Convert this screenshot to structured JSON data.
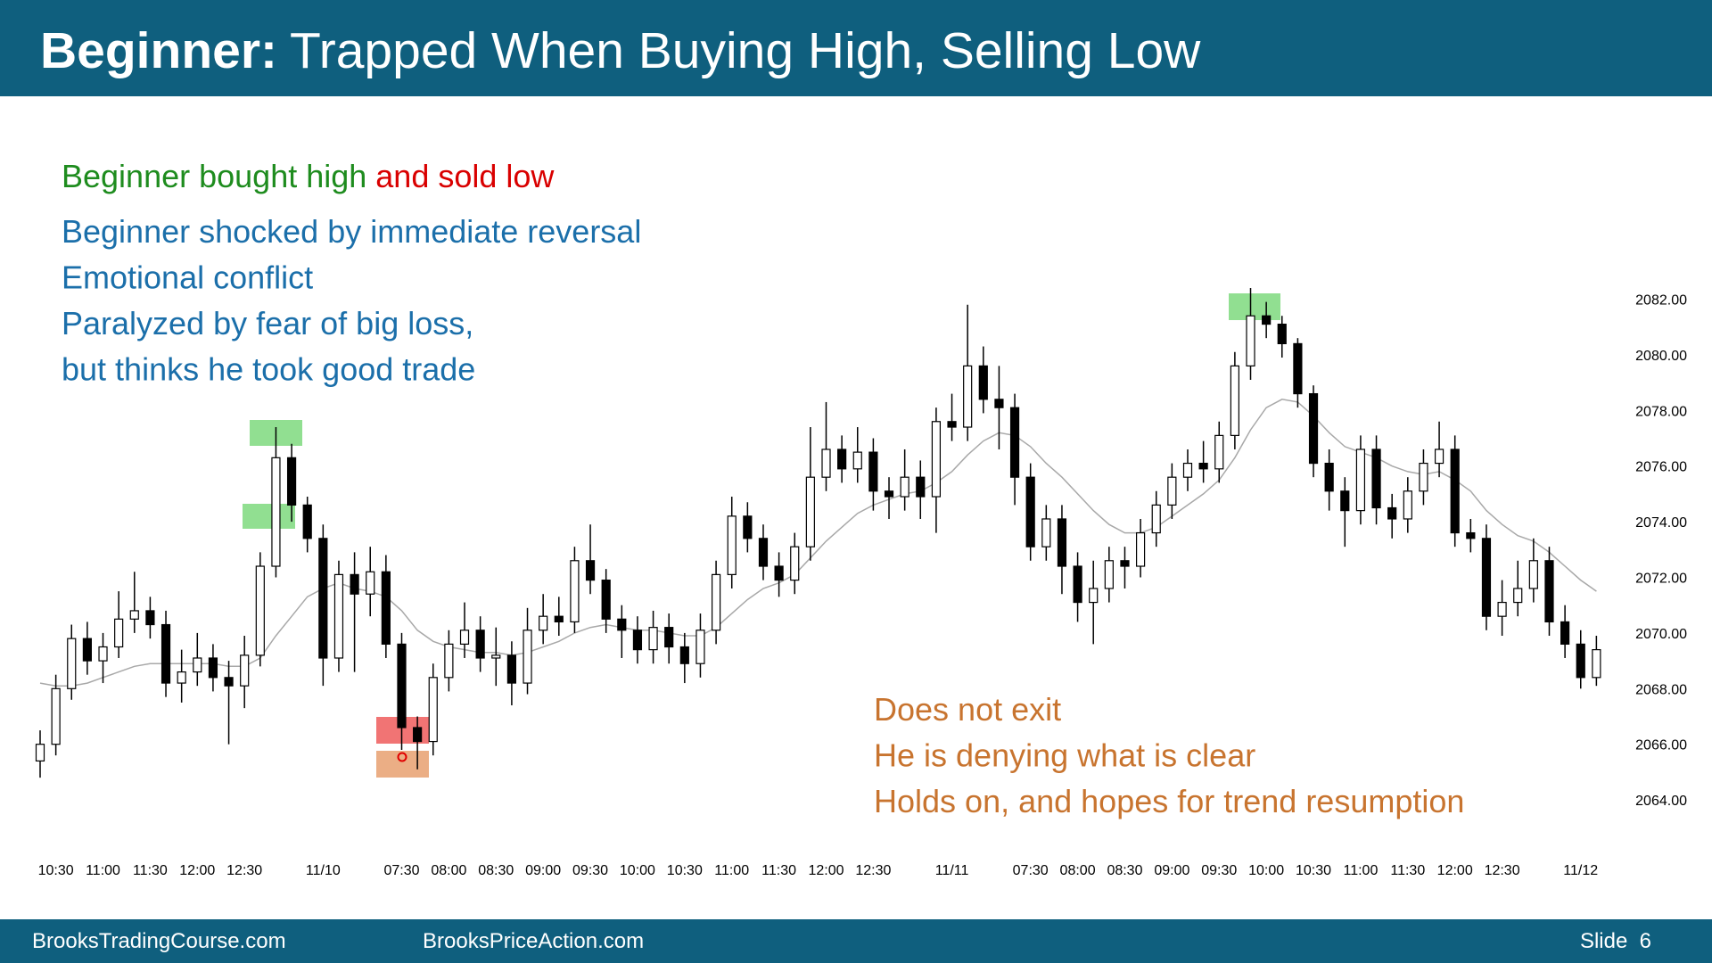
{
  "header": {
    "title_bold": "Beginner:",
    "title_rest": "Trapped When Buying High, Selling Low"
  },
  "footer": {
    "left": "BrooksTradingCourse.com",
    "middle": "BrooksPriceAction.com",
    "right": "Slide  6"
  },
  "chart_data": {
    "type": "candlestick",
    "annotations": {
      "first_line_green": "Beginner bought high",
      "first_line_red": "and sold low",
      "blue_lines": [
        "Beginner shocked by immediate reversal",
        "Emotional conflict",
        "Paralyzed by fear of big loss,",
        "but thinks he took good trade"
      ],
      "orange_lines": [
        "Does not exit",
        "He is denying what is clear",
        "Holds on, and hopes for trend resumption"
      ]
    },
    "colors": {
      "up": "#ffffff",
      "down": "#000000",
      "wick": "#000000",
      "ma": "#a8a8a8",
      "green_text": "#1e8c1e",
      "red_text": "#d90000",
      "blue_text": "#1b6faa",
      "orange_text": "#c8742f"
    },
    "ylim": [
      2063,
      2083
    ],
    "yticks": [
      {
        "value": 2064,
        "label": "2064.00"
      },
      {
        "value": 2066,
        "label": "2066.00"
      },
      {
        "value": 2068,
        "label": "2068.00"
      },
      {
        "value": 2070,
        "label": "2070.00"
      },
      {
        "value": 2072,
        "label": "2072.00"
      },
      {
        "value": 2074,
        "label": "2074.00"
      },
      {
        "value": 2076,
        "label": "2076.00"
      },
      {
        "value": 2078,
        "label": "2078.00"
      },
      {
        "value": 2080,
        "label": "2080.00"
      },
      {
        "value": 2082,
        "label": "2082.00"
      }
    ],
    "categories": [
      null,
      "10:30",
      null,
      null,
      "11:00",
      null,
      null,
      "11:30",
      null,
      null,
      "12:00",
      null,
      null,
      "12:30",
      null,
      null,
      null,
      null,
      "11/10",
      null,
      null,
      null,
      null,
      "07:30",
      null,
      null,
      "08:00",
      null,
      null,
      "08:30",
      null,
      null,
      "09:00",
      null,
      null,
      "09:30",
      null,
      null,
      "10:00",
      null,
      null,
      "10:30",
      null,
      null,
      "11:00",
      null,
      null,
      "11:30",
      null,
      null,
      "12:00",
      null,
      null,
      "12:30",
      null,
      null,
      null,
      null,
      "11/11",
      null,
      null,
      null,
      null,
      "07:30",
      null,
      null,
      "08:00",
      null,
      null,
      "08:30",
      null,
      null,
      "09:00",
      null,
      null,
      "09:30",
      null,
      null,
      "10:00",
      null,
      null,
      "10:30",
      null,
      null,
      "11:00",
      null,
      null,
      "11:30",
      null,
      null,
      "12:00",
      null,
      null,
      "12:30",
      null,
      null,
      null,
      null,
      "11/12",
      null
    ],
    "open": [
      2065.4,
      2066,
      2068,
      2069.8,
      2069,
      2069.5,
      2070.5,
      2070.8,
      2070.3,
      2068.2,
      2068.6,
      2069.1,
      2068.4,
      2068.1,
      2069.2,
      2072.4,
      2076.3,
      2074.6,
      2073.4,
      2069.1,
      2072.1,
      2071.4,
      2072.2,
      2069.6,
      2066.6,
      2066.1,
      2068.4,
      2069.6,
      2070.1,
      2069.1,
      2069.2,
      2068.2,
      2070.1,
      2070.6,
      2070.4,
      2072.6,
      2071.9,
      2070.5,
      2070.1,
      2069.4,
      2070.2,
      2069.5,
      2068.9,
      2070.1,
      2072.1,
      2074.2,
      2073.4,
      2072.4,
      2071.9,
      2073.1,
      2075.6,
      2076.6,
      2075.9,
      2076.5,
      2075.1,
      2074.9,
      2075.6,
      2074.9,
      2077.6,
      2077.4,
      2079.6,
      2078.4,
      2078.1,
      2075.6,
      2073.1,
      2074.1,
      2072.4,
      2071.1,
      2071.6,
      2072.6,
      2072.4,
      2073.6,
      2074.6,
      2075.6,
      2076.1,
      2075.9,
      2077.1,
      2079.6,
      2081.4,
      2081.1,
      2080.4,
      2078.6,
      2076.1,
      2075.1,
      2074.4,
      2076.6,
      2074.5,
      2074.1,
      2075.1,
      2076.1,
      2076.6,
      2073.6,
      2073.4,
      2070.6,
      2071.1,
      2071.6,
      2072.6,
      2070.4,
      2069.6,
      2068.4
    ],
    "high": [
      2066.5,
      2068.5,
      2070.3,
      2070.4,
      2070,
      2071.5,
      2072.2,
      2071.3,
      2070.8,
      2069.4,
      2070,
      2069.6,
      2069,
      2069.9,
      2072.9,
      2077.4,
      2076.8,
      2074.9,
      2073.9,
      2072.6,
      2072.9,
      2073.1,
      2072.8,
      2070,
      2067,
      2068.9,
      2070.1,
      2071.1,
      2070.6,
      2070.2,
      2069.7,
      2070.9,
      2071.4,
      2071.3,
      2073.1,
      2073.9,
      2072.3,
      2071,
      2070.6,
      2070.8,
      2070.7,
      2070,
      2070.7,
      2072.6,
      2074.9,
      2074.7,
      2073.9,
      2072.9,
      2073.6,
      2077.4,
      2078.3,
      2077.1,
      2077.4,
      2077,
      2075.6,
      2076.6,
      2076.2,
      2078.1,
      2078.6,
      2081.8,
      2080.3,
      2079.6,
      2078.6,
      2076.1,
      2074.6,
      2074.6,
      2072.9,
      2072.6,
      2073.1,
      2073.1,
      2074.1,
      2075.1,
      2076.1,
      2076.6,
      2076.9,
      2077.6,
      2080.1,
      2082.4,
      2081.9,
      2081.4,
      2080.6,
      2078.9,
      2076.6,
      2075.6,
      2077.1,
      2077.1,
      2075,
      2075.6,
      2076.6,
      2077.6,
      2077.1,
      2074.1,
      2073.9,
      2071.9,
      2072.6,
      2073.4,
      2073.1,
      2071,
      2070.1,
      2069.9
    ],
    "low": [
      2064.8,
      2065.6,
      2067.6,
      2068.5,
      2068.2,
      2069.1,
      2070,
      2069.8,
      2067.7,
      2067.5,
      2068.1,
      2067.9,
      2066,
      2067.3,
      2068.8,
      2072,
      2074,
      2072.9,
      2068.1,
      2068.6,
      2068.6,
      2070.6,
      2069.1,
      2065.8,
      2065.1,
      2065.6,
      2067.9,
      2069.1,
      2068.6,
      2068.1,
      2067.4,
      2067.8,
      2069.6,
      2069.9,
      2070,
      2071.4,
      2070,
      2069.1,
      2068.9,
      2068.9,
      2068.9,
      2068.2,
      2068.4,
      2069.6,
      2071.6,
      2072.9,
      2071.9,
      2071.3,
      2071.4,
      2072.6,
      2075.1,
      2075.4,
      2075.4,
      2074.4,
      2074.1,
      2074.4,
      2074.1,
      2073.6,
      2076.9,
      2076.9,
      2077.9,
      2076.6,
      2074.6,
      2072.6,
      2072.6,
      2071.4,
      2070.4,
      2069.6,
      2071.1,
      2071.6,
      2072,
      2073.1,
      2074.1,
      2075.1,
      2075.4,
      2075.4,
      2076.6,
      2079.1,
      2080.6,
      2079.9,
      2078.1,
      2075.6,
      2074.4,
      2073.1,
      2073.9,
      2073.9,
      2073.4,
      2073.6,
      2074.6,
      2075.6,
      2073.1,
      2072.9,
      2070.1,
      2069.9,
      2070.6,
      2071.1,
      2069.9,
      2069.1,
      2068,
      2068.1
    ],
    "close": [
      2066,
      2068,
      2069.8,
      2069,
      2069.5,
      2070.5,
      2070.8,
      2070.3,
      2068.2,
      2068.6,
      2069.1,
      2068.4,
      2068.1,
      2069.2,
      2072.4,
      2076.3,
      2074.6,
      2073.4,
      2069.1,
      2072.1,
      2071.4,
      2072.2,
      2069.6,
      2066.6,
      2066.1,
      2068.4,
      2069.6,
      2070.1,
      2069.1,
      2069.2,
      2068.2,
      2070.1,
      2070.6,
      2070.4,
      2072.6,
      2071.9,
      2070.5,
      2070.1,
      2069.4,
      2070.2,
      2069.5,
      2068.9,
      2070.1,
      2072.1,
      2074.2,
      2073.4,
      2072.4,
      2071.9,
      2073.1,
      2075.6,
      2076.6,
      2075.9,
      2076.5,
      2075.1,
      2074.9,
      2075.6,
      2074.9,
      2077.6,
      2077.4,
      2079.6,
      2078.4,
      2078.1,
      2075.6,
      2073.1,
      2074.1,
      2072.4,
      2071.1,
      2071.6,
      2072.6,
      2072.4,
      2073.6,
      2074.6,
      2075.6,
      2076.1,
      2075.9,
      2077.1,
      2079.6,
      2081.4,
      2081.1,
      2080.4,
      2078.6,
      2076.1,
      2075.1,
      2074.4,
      2076.6,
      2074.5,
      2074.1,
      2075.1,
      2076.1,
      2076.6,
      2073.6,
      2073.4,
      2070.6,
      2071.1,
      2071.6,
      2072.6,
      2070.4,
      2069.6,
      2068.4,
      2069.4
    ],
    "ma": [
      2068.2,
      2068.1,
      2068.1,
      2068.2,
      2068.4,
      2068.6,
      2068.8,
      2068.9,
      2068.9,
      2068.9,
      2068.9,
      2068.9,
      2068.8,
      2068.8,
      2069.1,
      2069.9,
      2070.6,
      2071.3,
      2071.6,
      2071.8,
      2071.6,
      2071.5,
      2071.3,
      2070.8,
      2070.1,
      2069.7,
      2069.5,
      2069.4,
      2069.3,
      2069.3,
      2069.2,
      2069.3,
      2069.5,
      2069.7,
      2070,
      2070.2,
      2070.3,
      2070.2,
      2070.1,
      2070.1,
      2070,
      2069.9,
      2069.9,
      2070.2,
      2070.7,
      2071.2,
      2071.6,
      2071.8,
      2072.1,
      2072.7,
      2073.3,
      2073.8,
      2074.3,
      2074.6,
      2074.8,
      2075,
      2075.1,
      2075.4,
      2075.8,
      2076.4,
      2076.9,
      2077.2,
      2077.1,
      2076.7,
      2076.1,
      2075.6,
      2075,
      2074.4,
      2073.9,
      2073.6,
      2073.6,
      2073.8,
      2074.2,
      2074.6,
      2075,
      2075.5,
      2076.3,
      2077.3,
      2078.1,
      2078.4,
      2078.3,
      2077.8,
      2077.2,
      2076.7,
      2076.5,
      2076.3,
      2076,
      2075.8,
      2075.7,
      2075.8,
      2075.5,
      2075.1,
      2074.4,
      2073.9,
      2073.5,
      2073.3,
      2072.9,
      2072.4,
      2071.9,
      2071.5
    ]
  }
}
